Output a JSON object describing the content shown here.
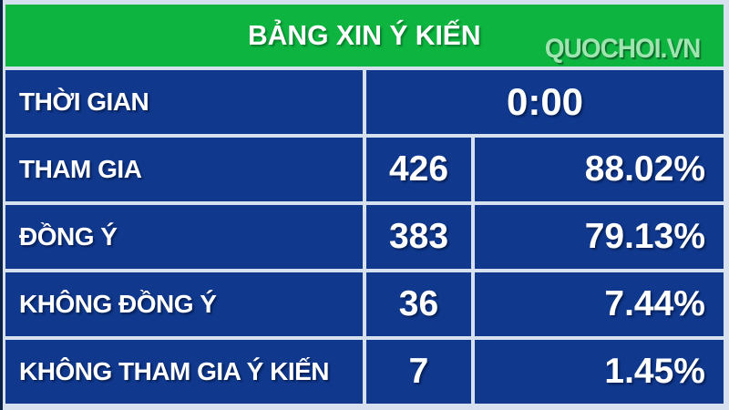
{
  "board": {
    "title": "BẢNG XIN Ý KIẾN",
    "watermark": "QUOCHOI.VN",
    "colors": {
      "header_green": "#0db440",
      "cell_blue": "#10398e",
      "divider_light": "#d7e0ee",
      "text_white": "#ffffff",
      "watermark_green": "#9fe5af"
    },
    "rows": [
      {
        "label": "THỜI GIAN",
        "value": "0:00",
        "percent": ""
      },
      {
        "label": "THAM GIA",
        "value": "426",
        "percent": "88.02%"
      },
      {
        "label": "ĐỒNG Ý",
        "value": "383",
        "percent": "79.13%"
      },
      {
        "label": "KHÔNG ĐỒNG Ý",
        "value": "36",
        "percent": "7.44%"
      },
      {
        "label": "KHÔNG THAM GIA Ý KIẾN",
        "value": "7",
        "percent": "1.45%"
      }
    ]
  },
  "chart_data": {
    "type": "table",
    "title": "BẢNG XIN Ý KIẾN",
    "columns": [
      "label",
      "count",
      "percent"
    ],
    "rows": [
      [
        "THỜI GIAN",
        "0:00",
        null
      ],
      [
        "THAM GIA",
        426,
        "88.02%"
      ],
      [
        "ĐỒNG Ý",
        383,
        "79.13%"
      ],
      [
        "KHÔNG ĐỒNG Ý",
        36,
        "7.44%"
      ],
      [
        "KHÔNG THAM GIA Ý KIẾN",
        7,
        "1.45%"
      ]
    ]
  }
}
